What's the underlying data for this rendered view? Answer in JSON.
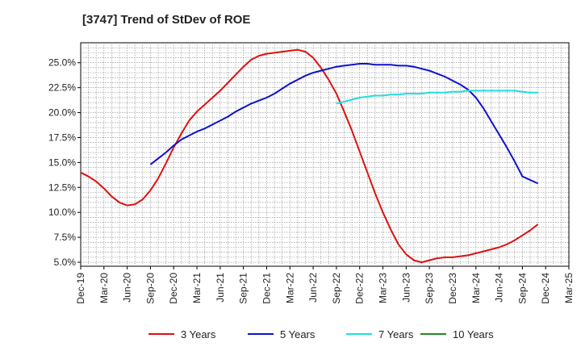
{
  "chart_data": {
    "type": "line",
    "title": "[3747]  Trend of StDev of ROE",
    "xlabel": "",
    "ylabel": "",
    "x_ticks": [
      "Dec-19",
      "Mar-20",
      "Jun-20",
      "Sep-20",
      "Dec-20",
      "Mar-21",
      "Jun-21",
      "Sep-21",
      "Dec-21",
      "Mar-22",
      "Jun-22",
      "Sep-22",
      "Dec-22",
      "Mar-23",
      "Jun-23",
      "Sep-23",
      "Dec-23",
      "Mar-24",
      "Jun-24",
      "Sep-24",
      "Dec-24",
      "Mar-25"
    ],
    "y_ticks": [
      "5.0%",
      "7.5%",
      "10.0%",
      "12.5%",
      "15.0%",
      "17.5%",
      "20.0%",
      "22.5%",
      "25.0%"
    ],
    "ylim": [
      4.6,
      27.0
    ],
    "grid": true,
    "legend_position": "bottom",
    "series": [
      {
        "name": "3 Years",
        "color": "#dd1111",
        "points": [
          [
            "Dec-19",
            14.0
          ],
          [
            "Jan-20",
            13.6
          ],
          [
            "Feb-20",
            13.1
          ],
          [
            "Mar-20",
            12.4
          ],
          [
            "Apr-20",
            11.6
          ],
          [
            "May-20",
            11.0
          ],
          [
            "Jun-20",
            10.7
          ],
          [
            "Jul-20",
            10.8
          ],
          [
            "Aug-20",
            11.3
          ],
          [
            "Sep-20",
            12.2
          ],
          [
            "Oct-20",
            13.4
          ],
          [
            "Nov-20",
            14.9
          ],
          [
            "Dec-20",
            16.5
          ],
          [
            "Jan-21",
            17.9
          ],
          [
            "Feb-21",
            19.2
          ],
          [
            "Mar-21",
            20.1
          ],
          [
            "Apr-21",
            20.8
          ],
          [
            "May-21",
            21.5
          ],
          [
            "Jun-21",
            22.2
          ],
          [
            "Jul-21",
            23.0
          ],
          [
            "Aug-21",
            23.8
          ],
          [
            "Sep-21",
            24.6
          ],
          [
            "Oct-21",
            25.3
          ],
          [
            "Nov-21",
            25.7
          ],
          [
            "Dec-21",
            25.9
          ],
          [
            "Jan-22",
            26.0
          ],
          [
            "Feb-22",
            26.1
          ],
          [
            "Mar-22",
            26.2
          ],
          [
            "Apr-22",
            26.3
          ],
          [
            "May-22",
            26.1
          ],
          [
            "Jun-22",
            25.5
          ],
          [
            "Jul-22",
            24.5
          ],
          [
            "Aug-22",
            23.3
          ],
          [
            "Sep-22",
            21.9
          ],
          [
            "Oct-22",
            20.1
          ],
          [
            "Nov-22",
            18.2
          ],
          [
            "Dec-22",
            16.1
          ],
          [
            "Jan-23",
            14.0
          ],
          [
            "Feb-23",
            11.9
          ],
          [
            "Mar-23",
            10.0
          ],
          [
            "Apr-23",
            8.3
          ],
          [
            "May-23",
            6.8
          ],
          [
            "Jun-23",
            5.8
          ],
          [
            "Jul-23",
            5.2
          ],
          [
            "Aug-23",
            5.0
          ],
          [
            "Sep-23",
            5.2
          ],
          [
            "Oct-23",
            5.4
          ],
          [
            "Nov-23",
            5.5
          ],
          [
            "Dec-23",
            5.5
          ],
          [
            "Jan-24",
            5.6
          ],
          [
            "Feb-24",
            5.7
          ],
          [
            "Mar-24",
            5.9
          ],
          [
            "Apr-24",
            6.1
          ],
          [
            "May-24",
            6.3
          ],
          [
            "Jun-24",
            6.5
          ],
          [
            "Jul-24",
            6.8
          ],
          [
            "Aug-24",
            7.2
          ],
          [
            "Sep-24",
            7.7
          ],
          [
            "Oct-24",
            8.2
          ],
          [
            "Nov-24",
            8.8
          ]
        ]
      },
      {
        "name": "5 Years",
        "color": "#1111cc",
        "points": [
          [
            "Sep-20",
            14.8
          ],
          [
            "Oct-20",
            15.4
          ],
          [
            "Nov-20",
            16.0
          ],
          [
            "Dec-20",
            16.7
          ],
          [
            "Jan-21",
            17.3
          ],
          [
            "Feb-21",
            17.7
          ],
          [
            "Mar-21",
            18.1
          ],
          [
            "Apr-21",
            18.4
          ],
          [
            "May-21",
            18.8
          ],
          [
            "Jun-21",
            19.2
          ],
          [
            "Jul-21",
            19.6
          ],
          [
            "Aug-21",
            20.1
          ],
          [
            "Sep-21",
            20.5
          ],
          [
            "Oct-21",
            20.9
          ],
          [
            "Nov-21",
            21.2
          ],
          [
            "Dec-21",
            21.5
          ],
          [
            "Jan-22",
            21.9
          ],
          [
            "Feb-22",
            22.4
          ],
          [
            "Mar-22",
            22.9
          ],
          [
            "Apr-22",
            23.3
          ],
          [
            "May-22",
            23.7
          ],
          [
            "Jun-22",
            24.0
          ],
          [
            "Jul-22",
            24.2
          ],
          [
            "Aug-22",
            24.4
          ],
          [
            "Sep-22",
            24.6
          ],
          [
            "Oct-22",
            24.7
          ],
          [
            "Nov-22",
            24.8
          ],
          [
            "Dec-22",
            24.9
          ],
          [
            "Jan-23",
            24.9
          ],
          [
            "Feb-23",
            24.8
          ],
          [
            "Mar-23",
            24.8
          ],
          [
            "Apr-23",
            24.8
          ],
          [
            "May-23",
            24.7
          ],
          [
            "Jun-23",
            24.7
          ],
          [
            "Jul-23",
            24.6
          ],
          [
            "Aug-23",
            24.4
          ],
          [
            "Sep-23",
            24.2
          ],
          [
            "Oct-23",
            23.9
          ],
          [
            "Nov-23",
            23.6
          ],
          [
            "Dec-23",
            23.2
          ],
          [
            "Jan-24",
            22.8
          ],
          [
            "Feb-24",
            22.3
          ],
          [
            "Mar-24",
            21.5
          ],
          [
            "Apr-24",
            20.4
          ],
          [
            "May-24",
            19.1
          ],
          [
            "Jun-24",
            17.8
          ],
          [
            "Jul-24",
            16.5
          ],
          [
            "Aug-24",
            15.1
          ],
          [
            "Sep-24",
            13.6
          ],
          [
            "Nov-24",
            12.9
          ]
        ]
      },
      {
        "name": "7 Years",
        "color": "#22dddd",
        "points": [
          [
            "Sep-22",
            20.9
          ],
          [
            "Oct-22",
            21.1
          ],
          [
            "Nov-22",
            21.3
          ],
          [
            "Dec-22",
            21.5
          ],
          [
            "Jan-23",
            21.6
          ],
          [
            "Feb-23",
            21.7
          ],
          [
            "Mar-23",
            21.7
          ],
          [
            "Apr-23",
            21.8
          ],
          [
            "May-23",
            21.8
          ],
          [
            "Jun-23",
            21.9
          ],
          [
            "Jul-23",
            21.9
          ],
          [
            "Aug-23",
            21.9
          ],
          [
            "Sep-23",
            22.0
          ],
          [
            "Oct-23",
            22.0
          ],
          [
            "Nov-23",
            22.0
          ],
          [
            "Dec-23",
            22.1
          ],
          [
            "Jan-24",
            22.1
          ],
          [
            "Feb-24",
            22.2
          ],
          [
            "Mar-24",
            22.2
          ],
          [
            "Apr-24",
            22.2
          ],
          [
            "May-24",
            22.2
          ],
          [
            "Jun-24",
            22.2
          ],
          [
            "Jul-24",
            22.2
          ],
          [
            "Aug-24",
            22.2
          ],
          [
            "Sep-24",
            22.1
          ],
          [
            "Oct-24",
            22.0
          ],
          [
            "Nov-24",
            22.0
          ]
        ]
      },
      {
        "name": "10 Years",
        "color": "#228822",
        "points": []
      }
    ]
  }
}
